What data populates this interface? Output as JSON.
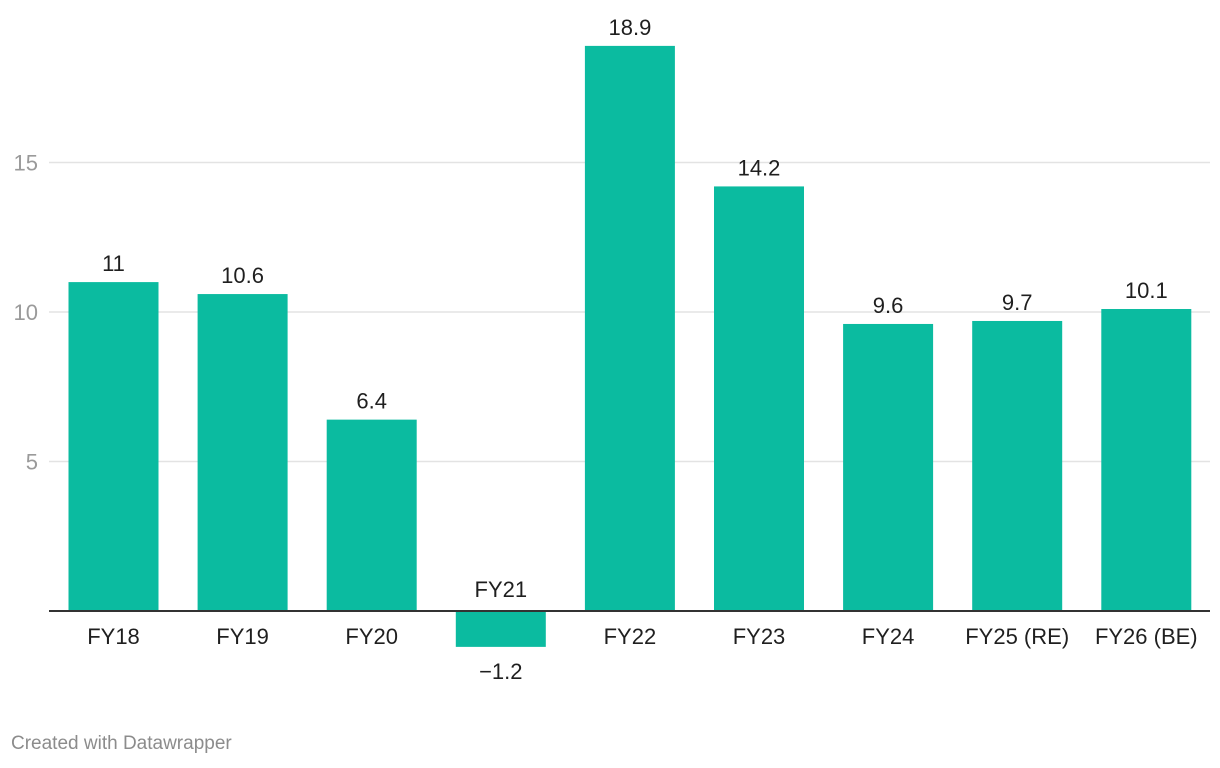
{
  "chart_data": {
    "type": "bar",
    "categories": [
      "FY18",
      "FY19",
      "FY20",
      "FY21",
      "FY22",
      "FY23",
      "FY24",
      "FY25 (RE)",
      "FY26 (BE)"
    ],
    "values": [
      11,
      10.6,
      6.4,
      -1.2,
      18.9,
      14.2,
      9.6,
      9.7,
      10.1
    ],
    "value_labels": [
      "11",
      "10.6",
      "6.4",
      "−1.2",
      "18.9",
      "14.2",
      "9.6",
      "9.7",
      "10.1"
    ],
    "y_ticks": [
      5,
      10,
      15
    ],
    "ylim": [
      -1.2,
      18.9
    ],
    "grid": true,
    "bar_color": "#0bbba0",
    "title": "",
    "xlabel": "",
    "ylabel": ""
  },
  "footer": {
    "credit": "Created with Datawrapper"
  }
}
